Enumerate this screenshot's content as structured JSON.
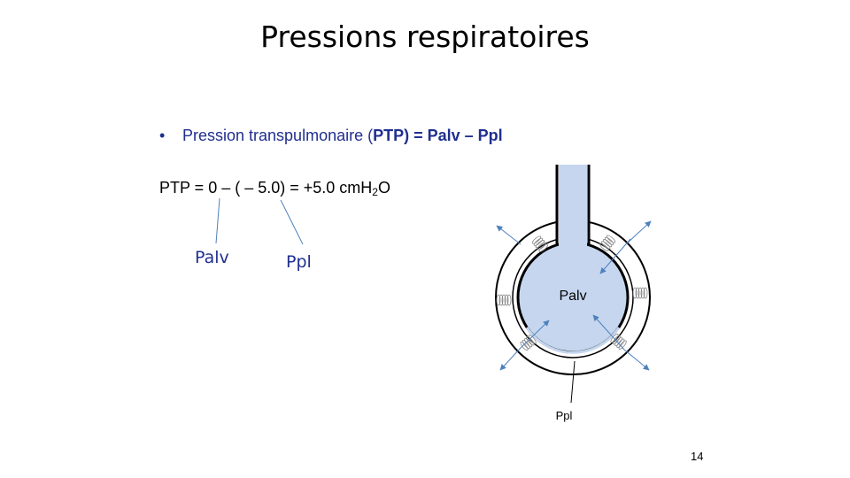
{
  "slide": {
    "title": "Pressions respiratoires",
    "bullet": {
      "marker": "•",
      "text_prefix": "Pression transpulmonaire  (",
      "text_bold": "PTP) = Palv – Ppl"
    },
    "equation": {
      "main": "PTP = 0 – ( – 5.0) = +5.0 cmH",
      "subscript": "2",
      "suffix": "O"
    },
    "annotations": {
      "palv": "Palv",
      "ppl": "Ppl"
    },
    "diagram": {
      "inner_label": "Palv",
      "pleural_label": "Ppl",
      "colors": {
        "alveolus_fill": "#c5d6ee",
        "arrow": "#4f81bd",
        "outline": "#000000"
      }
    },
    "page_number": "14"
  }
}
